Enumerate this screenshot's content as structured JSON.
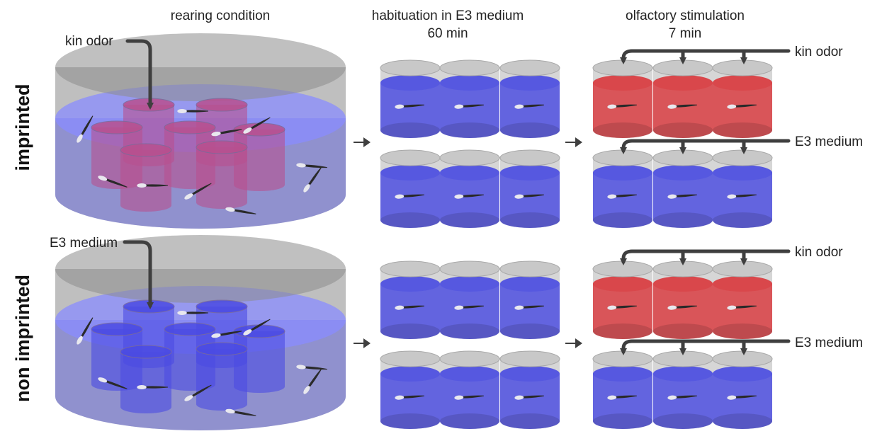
{
  "headers": {
    "rearing": "rearing condition",
    "habituation_line1": "habituation in E3 medium",
    "habituation_line2": "60 min",
    "stimulation_line1": "olfactory stimulation",
    "stimulation_line2": "7 min"
  },
  "rows": [
    {
      "label": "imprinted",
      "rearing_input": "kin odor",
      "inner_liquid": "#b8508f",
      "stimuli": [
        {
          "label": "kin odor",
          "liquid": "#d9474b"
        },
        {
          "label": "E3 medium",
          "liquid": "#5658e0"
        }
      ]
    },
    {
      "label": "non imprinted",
      "rearing_input": "E3 medium",
      "inner_liquid": "#4b4be3",
      "stimuli": [
        {
          "label": "kin odor",
          "liquid": "#d9474b"
        },
        {
          "label": "E3 medium",
          "liquid": "#5658e0"
        }
      ]
    }
  ],
  "colors": {
    "medium": "#5658e0",
    "kin_odor": "#d9474b",
    "dish_wall": "#9a9a9a",
    "arrow": "#3f3f3f"
  },
  "icons": [
    "right-arrow-icon",
    "fish-icon",
    "bent-arrow-icon"
  ]
}
